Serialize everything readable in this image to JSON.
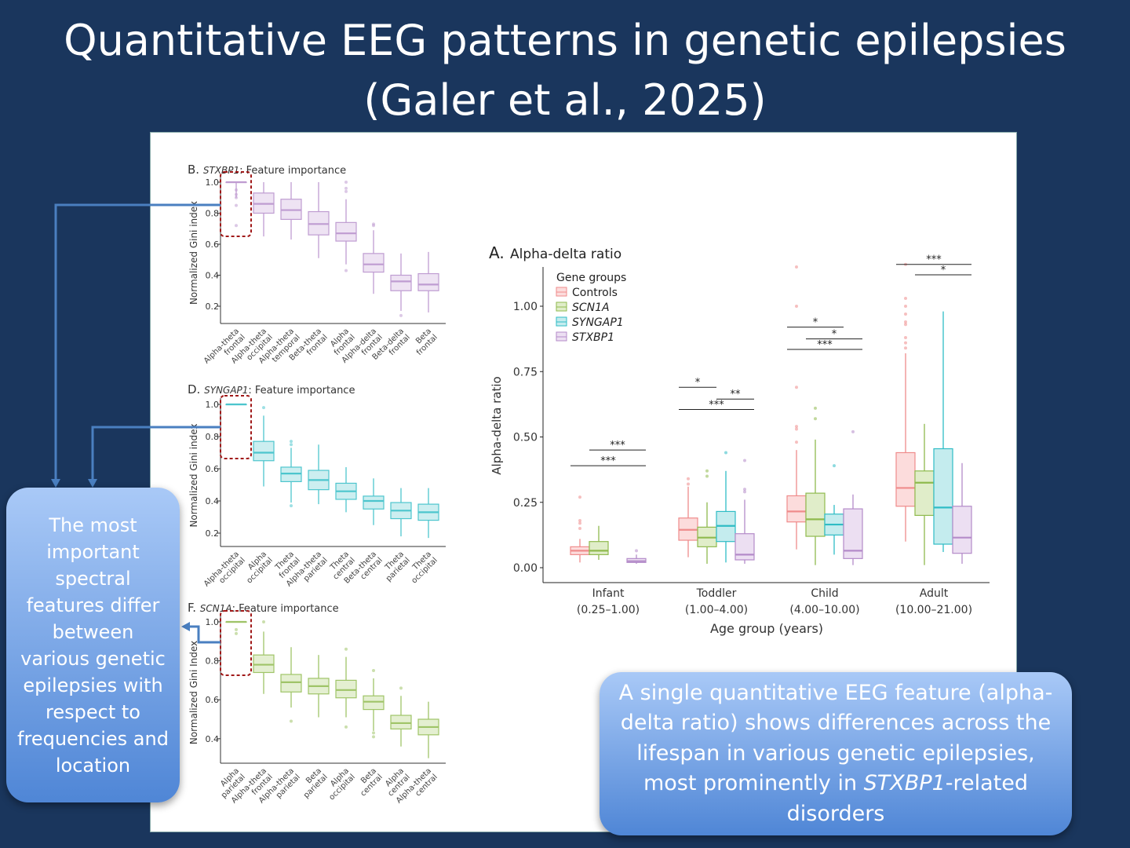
{
  "title": {
    "line1": "Quantitative EEG patterns in genetic epilepsies",
    "line2": "(Galer et al., 2025)"
  },
  "callouts": {
    "left": "The most important spectral features differ between various genetic epilepsies with respect to frequencies and location",
    "right_pre": "A single quantitative EEG feature (alpha-delta ratio) shows differences across the lifespan in various genetic epilepsies, most prominently in ",
    "right_italic": "STXBP1",
    "right_post": "-related disorders"
  },
  "colors": {
    "Controls": [
      "#ef8b8b",
      "#fcdcdc"
    ],
    "SCN1A": [
      "#8fba4e",
      "#e0edc9"
    ],
    "SYNGAP1": [
      "#2fbcc5",
      "#c4ecee"
    ],
    "STXBP1": [
      "#b48bc9",
      "#ecdff2"
    ],
    "arrow": "#4a7fc0",
    "highlight": "#a01818"
  },
  "chart_data": [
    {
      "type": "box",
      "id": "A",
      "label": "A.",
      "title": "Alpha-delta ratio",
      "xlabel": "Age group (years)",
      "ylabel": "Alpha-delta ratio",
      "ylim": [
        0,
        1.2
      ],
      "yticks": [
        "0.00",
        "0.25",
        "0.50",
        "0.75",
        "1.00"
      ],
      "legend": {
        "title": "Gene groups",
        "entries": [
          "Controls",
          "SCN1A",
          "SYNGAP1",
          "STXBP1"
        ],
        "position": "top-left"
      },
      "categories": [
        [
          "Infant",
          "(0.25–1.00)"
        ],
        [
          "Toddler",
          "(1.00–4.00)"
        ],
        [
          "Child",
          "(4.00–10.00)"
        ],
        [
          "Adult",
          "(10.00–21.00)"
        ]
      ],
      "groups": [
        [
          {
            "g": "Controls",
            "v": [
              0.02,
              0.05,
              0.065,
              0.08,
              0.11
            ],
            "out": [
              0.27,
              0.18,
              0.17,
              0.15
            ]
          },
          {
            "g": "SCN1A",
            "v": [
              0.03,
              0.05,
              0.065,
              0.1,
              0.16
            ],
            "out": []
          },
          null,
          {
            "g": "STXBP1",
            "v": [
              0.015,
              0.02,
              0.025,
              0.035,
              0.05
            ],
            "out": [
              0.065
            ]
          }
        ],
        [
          {
            "g": "Controls",
            "v": [
              0.04,
              0.105,
              0.145,
              0.19,
              0.31
            ],
            "out": [
              0.34,
              0.32
            ]
          },
          {
            "g": "SCN1A",
            "v": [
              0.015,
              0.08,
              0.115,
              0.155,
              0.25
            ],
            "out": [
              0.37,
              0.35
            ]
          },
          {
            "g": "SYNGAP1",
            "v": [
              0.02,
              0.1,
              0.16,
              0.215,
              0.37
            ],
            "out": [
              0.44
            ]
          },
          {
            "g": "STXBP1",
            "v": [
              0.015,
              0.03,
              0.05,
              0.13,
              0.26
            ],
            "out": [
              0.41,
              0.3,
              0.29
            ]
          }
        ],
        [
          {
            "g": "Controls",
            "v": [
              0.07,
              0.175,
              0.215,
              0.275,
              0.45
            ],
            "out": [
              1.15,
              1.0,
              0.69,
              0.54,
              0.53,
              0.48
            ]
          },
          {
            "g": "SCN1A",
            "v": [
              0.01,
              0.12,
              0.185,
              0.285,
              0.49
            ],
            "out": [
              0.61,
              0.57
            ]
          },
          {
            "g": "SYNGAP1",
            "v": [
              0.05,
              0.125,
              0.165,
              0.205,
              0.24
            ],
            "out": [
              0.39
            ]
          },
          {
            "g": "STXBP1",
            "v": [
              0.01,
              0.035,
              0.065,
              0.225,
              0.28
            ],
            "out": [
              0.52
            ]
          }
        ],
        [
          {
            "g": "Controls",
            "v": [
              0.1,
              0.235,
              0.305,
              0.44,
              0.82
            ],
            "out": [
              1.16,
              1.03,
              1.0,
              0.97,
              0.94,
              0.93,
              0.88,
              0.86,
              0.84
            ]
          },
          {
            "g": "SCN1A",
            "v": [
              0.01,
              0.2,
              0.325,
              0.37,
              0.55
            ],
            "out": []
          },
          {
            "g": "SYNGAP1",
            "v": [
              0.06,
              0.09,
              0.23,
              0.455,
              0.98
            ],
            "out": []
          },
          {
            "g": "STXBP1",
            "v": [
              0.015,
              0.055,
              0.115,
              0.235,
              0.4
            ],
            "out": []
          }
        ]
      ],
      "significance": [
        {
          "cat": 0,
          "from": 1,
          "to": 3,
          "level": 0.45,
          "label": "***"
        },
        {
          "cat": 0,
          "from": 0,
          "to": 3,
          "level": 0.39,
          "label": "***"
        },
        {
          "cat": 1,
          "from": 0,
          "to": 1,
          "level": 0.69,
          "label": "*"
        },
        {
          "cat": 1,
          "from": 2,
          "to": 3,
          "level": 0.645,
          "label": "**"
        },
        {
          "cat": 1,
          "from": 0,
          "to": 3,
          "level": 0.605,
          "label": "***"
        },
        {
          "cat": 2,
          "from": 0,
          "to": 2,
          "level": 0.92,
          "label": "*"
        },
        {
          "cat": 2,
          "from": 1,
          "to": 3,
          "level": 0.875,
          "label": "*"
        },
        {
          "cat": 2,
          "from": 0,
          "to": 3,
          "level": 0.835,
          "label": "***"
        },
        {
          "cat": 3,
          "from": 0,
          "to": 3,
          "level": 1.16,
          "label": "***"
        },
        {
          "cat": 3,
          "from": 1,
          "to": 3,
          "level": 1.12,
          "label": "*"
        }
      ]
    },
    {
      "type": "box",
      "id": "B",
      "label": "B.",
      "gene": "STXBP1",
      "title": ": Feature importance",
      "ylabel": "Normalized Gini index",
      "yticks": [
        "0.2",
        "0.4",
        "0.6",
        "0.8",
        "1.0"
      ],
      "tickvals": [
        0.2,
        0.4,
        0.6,
        0.8,
        1.0
      ],
      "categories": [
        [
          "Alpha-theta",
          "frontal"
        ],
        [
          "Alpha-theta",
          "occipital"
        ],
        [
          "Alpha-theta",
          "temporal"
        ],
        [
          "Beta-theta",
          "frontal"
        ],
        [
          "Alpha",
          "frontal"
        ],
        [
          "Alpha-delta",
          "frontal"
        ],
        [
          "Beta-delta",
          "frontal"
        ],
        [
          "Beta",
          "frontal"
        ]
      ],
      "boxes": [
        {
          "v": [
            0.9,
            1,
            1,
            1,
            1
          ],
          "out": [
            0.95,
            0.92,
            0.9,
            0.85,
            0.72
          ]
        },
        {
          "v": [
            0.65,
            0.8,
            0.86,
            0.93,
            1.0
          ],
          "out": []
        },
        {
          "v": [
            0.63,
            0.76,
            0.82,
            0.89,
            1.0
          ],
          "out": []
        },
        {
          "v": [
            0.51,
            0.66,
            0.73,
            0.81,
            1.0
          ],
          "out": []
        },
        {
          "v": [
            0.47,
            0.62,
            0.67,
            0.74,
            0.89
          ],
          "out": [
            1.0,
            0.96,
            0.94,
            0.43
          ]
        },
        {
          "v": [
            0.28,
            0.42,
            0.47,
            0.54,
            0.69
          ],
          "out": [
            0.73,
            0.72
          ]
        },
        {
          "v": [
            0.17,
            0.3,
            0.36,
            0.4,
            0.54
          ],
          "out": [
            0.14
          ]
        },
        {
          "v": [
            0.16,
            0.3,
            0.34,
            0.41,
            0.55
          ],
          "out": []
        }
      ]
    },
    {
      "type": "box",
      "id": "D",
      "label": "D.",
      "gene": "SYNGAP1",
      "title": ": Feature importance",
      "ylabel": "Normalized Gini index",
      "yticks": [
        "0.2",
        "0.4",
        "0.6",
        "0.8",
        "1.0"
      ],
      "tickvals": [
        0.2,
        0.4,
        0.6,
        0.8,
        1.0
      ],
      "categories": [
        [
          "Alpha-theta",
          "occipital"
        ],
        [
          "Alpha",
          "occipital"
        ],
        [
          "Theta",
          "frontal"
        ],
        [
          "Alpha-theta",
          "parietal"
        ],
        [
          "Theta",
          "central"
        ],
        [
          "Beta-theta",
          "central"
        ],
        [
          "Theta",
          "parietal"
        ],
        [
          "Theta",
          "occipital"
        ]
      ],
      "boxes": [
        {
          "v": [
            1,
            1,
            1,
            1,
            1
          ],
          "out": []
        },
        {
          "v": [
            0.49,
            0.65,
            0.7,
            0.77,
            0.93
          ],
          "out": [
            0.98
          ]
        },
        {
          "v": [
            0.39,
            0.52,
            0.57,
            0.61,
            0.73
          ],
          "out": [
            0.77,
            0.75,
            0.37
          ]
        },
        {
          "v": [
            0.38,
            0.47,
            0.53,
            0.59,
            0.75
          ],
          "out": []
        },
        {
          "v": [
            0.33,
            0.41,
            0.46,
            0.51,
            0.61
          ],
          "out": []
        },
        {
          "v": [
            0.25,
            0.35,
            0.4,
            0.43,
            0.54
          ],
          "out": []
        },
        {
          "v": [
            0.18,
            0.29,
            0.34,
            0.39,
            0.48
          ],
          "out": []
        },
        {
          "v": [
            0.17,
            0.28,
            0.33,
            0.38,
            0.48
          ],
          "out": []
        }
      ]
    },
    {
      "type": "box",
      "id": "F",
      "label": "F.",
      "gene": "SCN1A",
      "title": ": Feature importance",
      "ylabel": "Normalized Gini Index",
      "yticks": [
        "0.4",
        "0.6",
        "0.8",
        "1.0"
      ],
      "tickvals": [
        0.4,
        0.6,
        0.8,
        1.0
      ],
      "categories": [
        [
          "Alpha",
          "parietal"
        ],
        [
          "Alpha-theta",
          "frontal"
        ],
        [
          "Alpha-theta",
          "parietal"
        ],
        [
          "Beta",
          "parietal"
        ],
        [
          "Alpha",
          "occipital"
        ],
        [
          "Beta",
          "central"
        ],
        [
          "Alpha",
          "central"
        ],
        [
          "Alpha-theta",
          "central"
        ]
      ],
      "boxes": [
        {
          "v": [
            1,
            1,
            1,
            1,
            1
          ],
          "out": [
            0.96,
            0.94
          ]
        },
        {
          "v": [
            0.63,
            0.74,
            0.78,
            0.83,
            0.95
          ],
          "out": [
            1.0
          ]
        },
        {
          "v": [
            0.56,
            0.64,
            0.69,
            0.73,
            0.87
          ],
          "out": [
            0.49
          ]
        },
        {
          "v": [
            0.51,
            0.63,
            0.67,
            0.71,
            0.83
          ],
          "out": []
        },
        {
          "v": [
            0.51,
            0.61,
            0.65,
            0.7,
            0.82
          ],
          "out": [
            0.86,
            0.46
          ]
        },
        {
          "v": [
            0.44,
            0.55,
            0.59,
            0.62,
            0.71
          ],
          "out": [
            0.75,
            0.43,
            0.41
          ]
        },
        {
          "v": [
            0.36,
            0.45,
            0.48,
            0.52,
            0.62
          ],
          "out": [
            0.66
          ]
        },
        {
          "v": [
            0.3,
            0.42,
            0.46,
            0.5,
            0.59
          ],
          "out": []
        }
      ]
    }
  ]
}
